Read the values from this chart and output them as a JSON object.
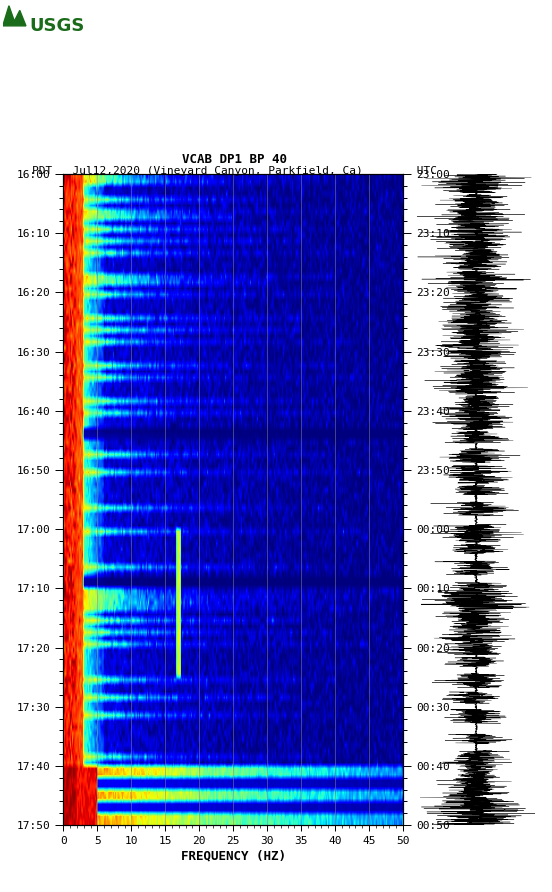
{
  "title_line1": "VCAB DP1 BP 40",
  "title_line2": "PDT   Jul12,2020 (Vineyard Canyon, Parkfield, Ca)        UTC",
  "xlabel": "FREQUENCY (HZ)",
  "freq_min": 0,
  "freq_max": 50,
  "freq_ticks": [
    0,
    5,
    10,
    15,
    20,
    25,
    30,
    35,
    40,
    45,
    50
  ],
  "left_yticks_labels": [
    "16:00",
    "16:10",
    "16:20",
    "16:30",
    "16:40",
    "16:50",
    "17:00",
    "17:10",
    "17:20",
    "17:30",
    "17:40",
    "17:50"
  ],
  "right_yticks_labels": [
    "23:00",
    "23:10",
    "23:20",
    "23:30",
    "23:40",
    "23:50",
    "00:00",
    "00:10",
    "00:20",
    "00:30",
    "00:40",
    "00:50"
  ],
  "bg_color": "#ffffff",
  "spectrogram_colormap": "jet",
  "grid_line_color": "#888888",
  "grid_freq_positions": [
    5,
    10,
    15,
    20,
    25,
    30,
    35,
    40,
    45
  ],
  "usgs_logo_color": "#1a6b1a",
  "tick_label_fontsize": 8,
  "title_fontsize": 9,
  "label_fontsize": 9,
  "n_time_bins": 110,
  "n_freq_bins": 300,
  "seed": 42,
  "minutes_total": 110
}
